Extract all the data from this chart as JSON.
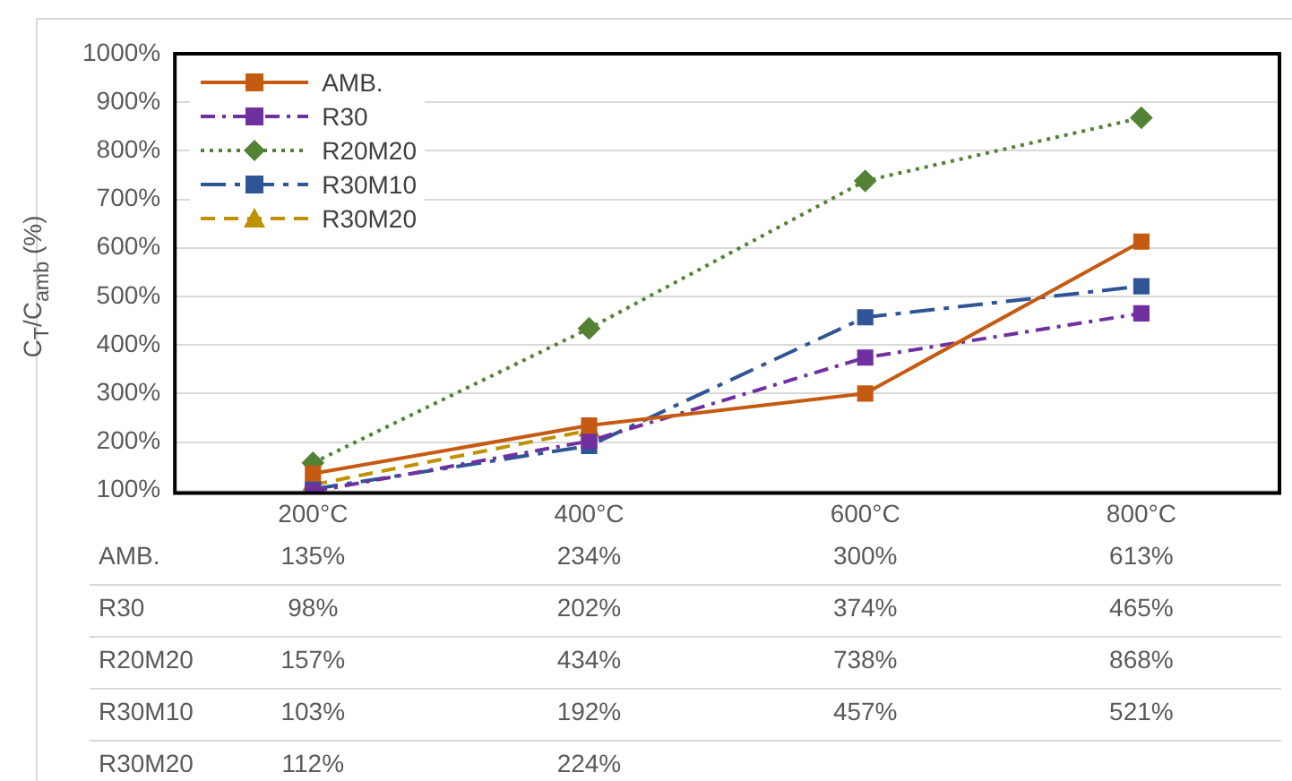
{
  "chart_data": {
    "type": "line",
    "ylabel": "C$_{T}$/C$_{amb}$ (%)",
    "categories": [
      "200°C",
      "400°C",
      "600°C",
      "800°C"
    ],
    "series": [
      {
        "name": "AMB.",
        "color": "#c55a11",
        "marker": "square",
        "line_style": "solid",
        "values": [
          135,
          234,
          300,
          613
        ],
        "value_labels": [
          "135%",
          "234%",
          "300%",
          "613%"
        ]
      },
      {
        "name": "R30",
        "color": "#7030a0",
        "marker": "square",
        "line_style": "dashdot",
        "values": [
          98,
          202,
          374,
          465
        ],
        "value_labels": [
          "98%",
          "202%",
          "374%",
          "465%"
        ]
      },
      {
        "name": "R20M20",
        "color": "#548235",
        "marker": "diamond",
        "line_style": "dotted",
        "values": [
          157,
          434,
          738,
          868
        ],
        "value_labels": [
          "157%",
          "434%",
          "738%",
          "868%"
        ]
      },
      {
        "name": "R30M10",
        "color": "#2f5597",
        "marker": "square",
        "line_style": "longdashdot",
        "values": [
          103,
          192,
          457,
          521
        ],
        "value_labels": [
          "103%",
          "192%",
          "457%",
          "521%"
        ]
      },
      {
        "name": "R30M20",
        "color": "#bf9000",
        "marker": "triangle",
        "line_style": "dashed",
        "values": [
          112,
          224,
          null,
          null
        ],
        "value_labels": [
          "112%",
          "224%",
          null,
          null
        ]
      }
    ],
    "ylim": [
      95,
      1000
    ],
    "yticks": [
      {
        "value": 100,
        "label": "100%"
      },
      {
        "value": 200,
        "label": "200%"
      },
      {
        "value": 300,
        "label": "300%"
      },
      {
        "value": 400,
        "label": "400%"
      },
      {
        "value": 500,
        "label": "500%"
      },
      {
        "value": 600,
        "label": "600%"
      },
      {
        "value": 700,
        "label": "700%"
      },
      {
        "value": 800,
        "label": "800%"
      },
      {
        "value": 900,
        "label": "900%"
      },
      {
        "value": 1000,
        "label": "1000%"
      }
    ],
    "grid": "y",
    "legend": "top left"
  }
}
